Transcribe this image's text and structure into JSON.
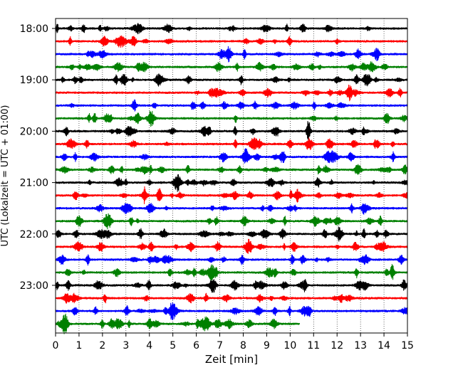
{
  "chart_data": {
    "type": "line",
    "title": "",
    "xlabel": "Zeit  [min]",
    "ylabel": "UTC (Lokalzeit = UTC + 01:00)",
    "xlim": [
      0,
      15
    ],
    "x_ticks": [
      0,
      1,
      2,
      3,
      4,
      5,
      6,
      7,
      8,
      9,
      10,
      11,
      12,
      13,
      14,
      15
    ],
    "y_tick_labels": [
      "18:00",
      "19:00",
      "20:00",
      "21:00",
      "22:00",
      "23:00"
    ],
    "y_tick_rows": [
      0,
      4,
      8,
      12,
      16,
      20
    ],
    "grid_x": true,
    "grid_style": "dotted",
    "trace_interval_minutes": 15,
    "colors": [
      "#000000",
      "#ff0000",
      "#0000ff",
      "#008000"
    ],
    "series": [
      {
        "start": "18:00",
        "color": "#000000",
        "end_min": 15
      },
      {
        "start": "18:15",
        "color": "#ff0000",
        "end_min": 15
      },
      {
        "start": "18:30",
        "color": "#0000ff",
        "end_min": 15
      },
      {
        "start": "18:45",
        "color": "#008000",
        "end_min": 15
      },
      {
        "start": "19:00",
        "color": "#000000",
        "end_min": 15
      },
      {
        "start": "19:15",
        "color": "#ff0000",
        "end_min": 15
      },
      {
        "start": "19:30",
        "color": "#0000ff",
        "end_min": 15
      },
      {
        "start": "19:45",
        "color": "#008000",
        "end_min": 15
      },
      {
        "start": "20:00",
        "color": "#000000",
        "end_min": 15
      },
      {
        "start": "20:15",
        "color": "#ff0000",
        "end_min": 15
      },
      {
        "start": "20:30",
        "color": "#0000ff",
        "end_min": 15
      },
      {
        "start": "20:45",
        "color": "#008000",
        "end_min": 15
      },
      {
        "start": "21:00",
        "color": "#000000",
        "end_min": 15
      },
      {
        "start": "21:15",
        "color": "#ff0000",
        "end_min": 15
      },
      {
        "start": "21:30",
        "color": "#0000ff",
        "end_min": 15
      },
      {
        "start": "21:45",
        "color": "#008000",
        "end_min": 15
      },
      {
        "start": "22:00",
        "color": "#000000",
        "end_min": 15
      },
      {
        "start": "22:15",
        "color": "#ff0000",
        "end_min": 15
      },
      {
        "start": "22:30",
        "color": "#0000ff",
        "end_min": 15
      },
      {
        "start": "22:45",
        "color": "#008000",
        "end_min": 15
      },
      {
        "start": "23:00",
        "color": "#000000",
        "end_min": 15
      },
      {
        "start": "23:15",
        "color": "#ff0000",
        "end_min": 15
      },
      {
        "start": "23:30",
        "color": "#0000ff",
        "end_min": 15
      },
      {
        "start": "23:45",
        "color": "#008000",
        "end_min": 10.4
      }
    ]
  }
}
